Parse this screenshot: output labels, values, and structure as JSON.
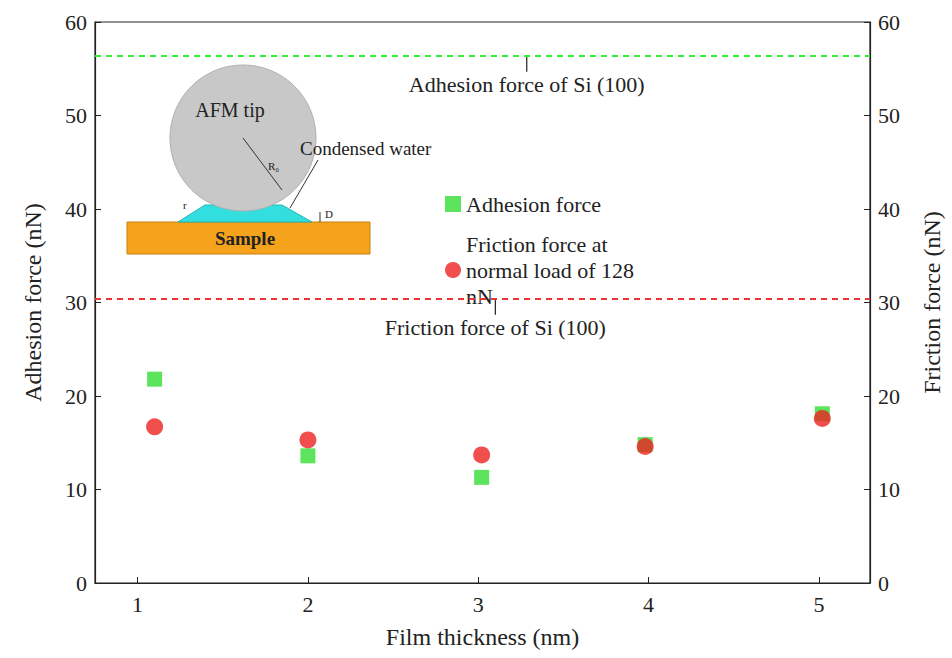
{
  "chart_data": {
    "type": "scatter",
    "x_label": "Film thickness (nm)",
    "y_label": "Adhesion force (nN)",
    "y2_label": "Friction force (nN)",
    "xlim": [
      0.75,
      5.3
    ],
    "xticks": [
      1,
      2,
      3,
      4,
      5
    ],
    "ylim": [
      0,
      60
    ],
    "yticks": [
      0,
      10,
      20,
      30,
      40,
      50,
      60
    ],
    "y2lim": [
      0,
      60
    ],
    "y2ticks": [
      0,
      10,
      20,
      30,
      40,
      50,
      60
    ],
    "grid": false,
    "legend": "top",
    "series": [
      {
        "name": "Adhesion force",
        "color": "#33dd33",
        "marker": "square",
        "x": [
          1.1,
          2.0,
          3.02,
          3.98,
          5.02
        ],
        "values": [
          21.8,
          13.6,
          11.3,
          14.8,
          18.1
        ]
      },
      {
        "name": "Friction force at normal load of 128 nN",
        "color": "#ee2222",
        "marker": "circle",
        "axis": "y2",
        "x": [
          1.1,
          2.0,
          3.02,
          3.98,
          5.02
        ],
        "values": [
          16.7,
          15.3,
          13.7,
          14.6,
          17.6
        ]
      }
    ],
    "reference_lines": [
      {
        "label": "Adhesion force of Si (100)",
        "value": 56.4,
        "color": "#33ee33",
        "line_style": "dashed"
      },
      {
        "label": "Friction force of Si (100)",
        "value": 30.4,
        "axis": "y2",
        "color": "#ee3333",
        "line_style": "dashed"
      }
    ],
    "inset": {
      "tip": "AFM tip",
      "water": "Condensed water",
      "sample": "Sample",
      "radius": "R₀",
      "meniscus": "r",
      "gap": "D"
    }
  }
}
